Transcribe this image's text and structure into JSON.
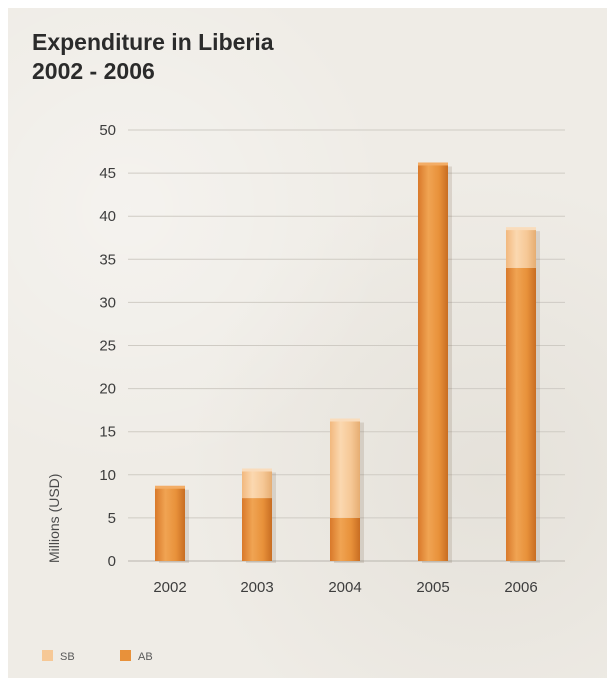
{
  "chart_data": {
    "type": "bar",
    "stacked": true,
    "title": [
      "Expenditure in Liberia",
      "2002 - 2006"
    ],
    "xlabel": "",
    "ylabel": "Millions (USD)",
    "categories": [
      "2002",
      "2003",
      "2004",
      "2005",
      "2006"
    ],
    "ylim": [
      0,
      50
    ],
    "yticks": [
      0,
      5,
      10,
      15,
      20,
      25,
      30,
      35,
      40,
      45,
      50
    ],
    "series": [
      {
        "name": "AB",
        "color": "#e8913a",
        "values": [
          8.5,
          7.3,
          5.0,
          46.0,
          34.0
        ]
      },
      {
        "name": "SB",
        "color": "#f6c896",
        "values": [
          0,
          3.2,
          11.3,
          0,
          4.5
        ]
      }
    ],
    "legend_order": [
      "SB",
      "AB"
    ],
    "legend_position": "bottom-left",
    "grid": true
  }
}
